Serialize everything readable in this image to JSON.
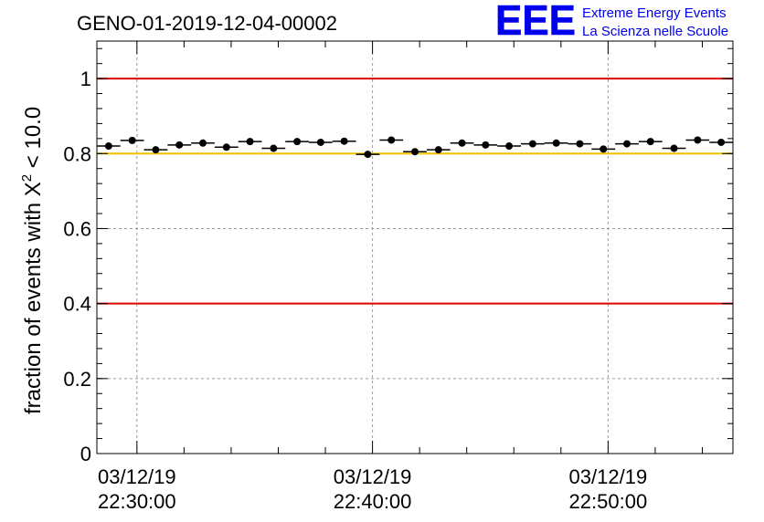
{
  "chart_data": {
    "type": "scatter",
    "title": "GENO-01-2019-12-04-00002",
    "ylabel_main": "fraction of events with ",
    "ylabel_chi": "X",
    "ylabel_power": "2",
    "ylabel_tail": " < 10.0",
    "xlabel": "",
    "ylim": [
      0,
      1.1
    ],
    "y_ticks": [
      {
        "value": 0,
        "label": "0"
      },
      {
        "value": 0.2,
        "label": "0.2"
      },
      {
        "value": 0.4,
        "label": "0.4"
      },
      {
        "value": 0.6,
        "label": "0.6"
      },
      {
        "value": 0.8,
        "label": "0.8"
      },
      {
        "value": 1.0,
        "label": "1"
      }
    ],
    "xlim_minutes": [
      0,
      27
    ],
    "x_ticks": [
      {
        "minute": 1.7,
        "date": "03/12/19",
        "time": "22:30:00"
      },
      {
        "minute": 11.7,
        "date": "03/12/19",
        "time": "22:40:00"
      },
      {
        "minute": 21.7,
        "date": "03/12/19",
        "time": "22:50:00"
      }
    ],
    "x_unit": "minutes from 22:28:20",
    "bin_width_minutes": 1,
    "reference_lines": [
      {
        "value": 1.0,
        "color": "#e00000"
      },
      {
        "value": 0.8,
        "color": "#f2c200"
      },
      {
        "value": 0.4,
        "color": "#e00000"
      }
    ],
    "series": [
      {
        "name": "fraction",
        "x": [
          0.5,
          1.5,
          2.5,
          3.5,
          4.5,
          5.5,
          6.5,
          7.5,
          8.5,
          9.5,
          10.5,
          11.5,
          12.5,
          13.5,
          14.5,
          15.5,
          16.5,
          17.5,
          18.5,
          19.5,
          20.5,
          21.5,
          22.5,
          23.5,
          24.5,
          25.5,
          26.5
        ],
        "values": [
          0.82,
          0.835,
          0.81,
          0.823,
          0.828,
          0.817,
          0.832,
          0.814,
          0.832,
          0.83,
          0.833,
          0.798,
          0.836,
          0.805,
          0.81,
          0.828,
          0.823,
          0.82,
          0.826,
          0.828,
          0.826,
          0.812,
          0.826,
          0.832,
          0.814,
          0.836,
          0.83
        ]
      }
    ]
  },
  "logo": {
    "mark": "EEE",
    "line1": "Extreme Energy Events",
    "line2": "La Scienza nelle Scuole",
    "color": "#0000ee"
  }
}
